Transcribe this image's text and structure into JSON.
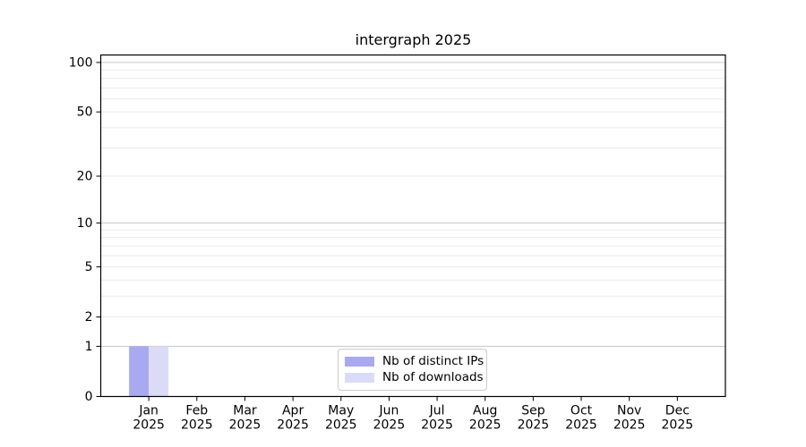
{
  "page": {
    "background_color": "#ffffff"
  },
  "chart_data": {
    "type": "bar",
    "title": "intergraph 2025",
    "categories": [
      "Jan",
      "Feb",
      "Mar",
      "Apr",
      "May",
      "Jun",
      "Jul",
      "Aug",
      "Sep",
      "Oct",
      "Nov",
      "Dec"
    ],
    "category_sublabel": "2025",
    "series": [
      {
        "name": "Nb of distinct IPs",
        "color": "#a9a9f2",
        "values": [
          1,
          0,
          0,
          0,
          0,
          0,
          0,
          0,
          0,
          0,
          0,
          0
        ]
      },
      {
        "name": "Nb of downloads",
        "color": "#dbdbf8",
        "values": [
          1,
          0,
          0,
          0,
          0,
          0,
          0,
          0,
          0,
          0,
          0,
          0
        ]
      }
    ],
    "yscale": "log1p",
    "ylim": [
      0,
      111
    ],
    "y_ticks": [
      0,
      1,
      2,
      5,
      10,
      20,
      50,
      100
    ],
    "y_gridlines_major": [
      1,
      10,
      100
    ],
    "y_gridlines_minor": [
      2,
      3,
      4,
      5,
      6,
      7,
      8,
      9,
      20,
      30,
      40,
      50,
      60,
      70,
      80,
      90
    ],
    "grid": "horizontal",
    "legend_position": "bottom-center",
    "colors": {
      "axis": "#000000",
      "grid_major": "#c6c6c6",
      "grid_minor": "#eaeaea",
      "legend_border": "#cccccc"
    }
  }
}
